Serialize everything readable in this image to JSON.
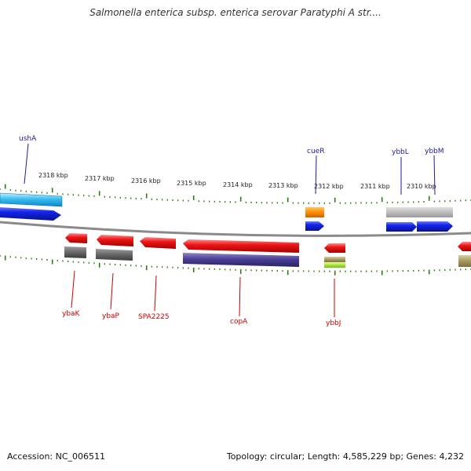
{
  "title": "Salmonella enterica subsp. enterica serovar Paratyphi A str....",
  "scale_labels": [
    "2318 kbp",
    "2317 kbp",
    "2316 kbp",
    "2315 kbp",
    "2314 kbp",
    "2313 kbp",
    "2312 kbp",
    "2311 kbp",
    "2310 kbp"
  ],
  "top_gene_labels": [
    "ushA",
    "cueR",
    "ybbL",
    "ybbM"
  ],
  "bottom_gene_labels": [
    "ybaK",
    "ybaP",
    "SPA2225",
    "copA",
    "ybbJ"
  ],
  "colors": {
    "forward_cds": "#0a1adb",
    "reverse_cds": "#dd0f0f",
    "top_gene_label": "#1b1b99",
    "bottom_gene_label": "#cc0000",
    "tick": "#2c7a12",
    "backbone": "#8a8a8a"
  },
  "footer": {
    "accession": "Accession: NC_006511",
    "summary": "Topology: circular; Length: 4,585,229 bp; Genes: 4,232"
  }
}
